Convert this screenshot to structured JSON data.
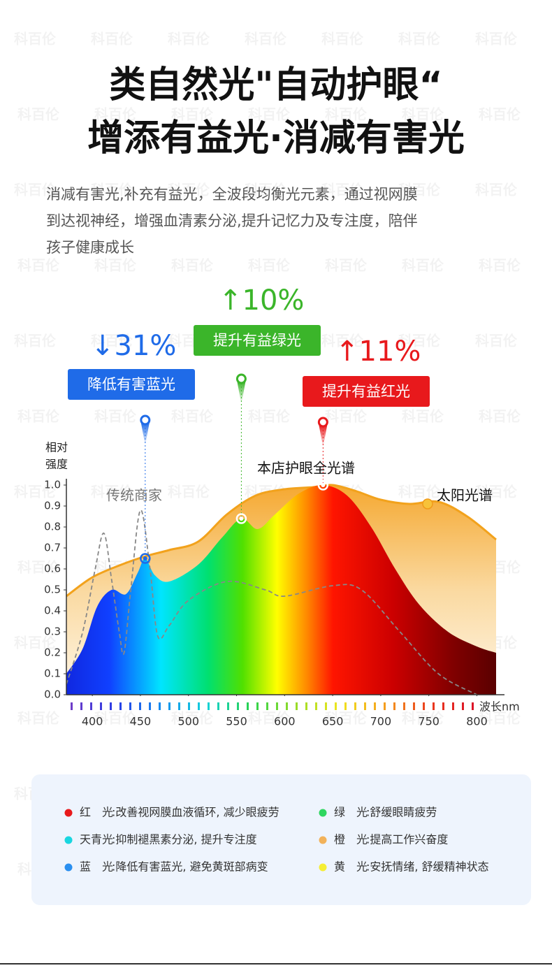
{
  "watermark": "科百伦",
  "header": {
    "title_lines": [
      "类自然光\"自动护眼“",
      "增添有益光·消减有害光"
    ],
    "description_lines": [
      "消减有害光,补充有益光，全波段均衡光元素，通过视网膜",
      "到达视神经，增强血清素分泌,提升记忆力及专注度，陪伴",
      "孩子健康成长"
    ]
  },
  "callouts": [
    {
      "change": "↓31%",
      "label": "降低有害蓝光",
      "color": "#1f6be8"
    },
    {
      "change": "↑10%",
      "label": "提升有益绿光",
      "color": "#3bb52a"
    },
    {
      "change": "↑11%",
      "label": "提升有益红光",
      "color": "#e8191c"
    }
  ],
  "chart_data": {
    "type": "line",
    "y_label_lines": [
      "相对",
      "强度"
    ],
    "x_label": "波长nm",
    "xlim": [
      373,
      820
    ],
    "ylim": [
      0,
      1.0
    ],
    "xticks": [
      400,
      450,
      500,
      550,
      600,
      650,
      700,
      750,
      800
    ],
    "yticks": [
      {
        "value": 0,
        "label": "0.0"
      },
      0.1,
      0.2,
      0.3,
      0.4,
      0.5,
      0.6,
      0.7,
      0.8,
      0.9,
      {
        "value": 1.0,
        "label": "1.0"
      }
    ],
    "series": [
      {
        "name": "太阳光谱",
        "color": "#f2a21c",
        "x": [
          373,
          400,
          430,
          455,
          480,
          510,
          540,
          570,
          600,
          630,
          650,
          675,
          700,
          730,
          760,
          790,
          820
        ],
        "values": [
          0.47,
          0.56,
          0.62,
          0.66,
          0.69,
          0.73,
          0.86,
          0.95,
          0.98,
          0.99,
          1.0,
          0.97,
          0.93,
          0.91,
          0.92,
          0.85,
          0.74
        ]
      },
      {
        "name": "本店护眼全光谱",
        "color": "#e8191c",
        "x": [
          373,
          390,
          405,
          420,
          435,
          447,
          455,
          465,
          480,
          510,
          535,
          555,
          572,
          590,
          615,
          640,
          665,
          690,
          715,
          740,
          770,
          800,
          820
        ],
        "values": [
          0.1,
          0.22,
          0.42,
          0.5,
          0.48,
          0.58,
          0.65,
          0.57,
          0.54,
          0.62,
          0.75,
          0.84,
          0.79,
          0.86,
          0.96,
          1.0,
          0.95,
          0.8,
          0.6,
          0.43,
          0.3,
          0.23,
          0.2
        ]
      },
      {
        "name": "传统商家",
        "color": "#888888",
        "x": [
          373,
          390,
          403,
          412,
          420,
          428,
          433,
          440,
          450,
          460,
          468,
          480,
          500,
          540,
          580,
          600,
          650,
          680,
          720,
          760,
          800
        ],
        "values": [
          0.05,
          0.3,
          0.6,
          0.77,
          0.55,
          0.3,
          0.2,
          0.5,
          0.88,
          0.6,
          0.28,
          0.33,
          0.45,
          0.54,
          0.5,
          0.47,
          0.52,
          0.5,
          0.3,
          0.1,
          0.0
        ]
      }
    ]
  },
  "legend": [
    {
      "name": "红　光",
      "text": ":改善视网膜血液循环, 减少眼疲劳",
      "color": "#e8191c"
    },
    {
      "name": "绿　光",
      "text": ":舒缓眼睛疲劳",
      "color": "#2fd660"
    },
    {
      "name": "天青光",
      "text": ":抑制褪黑素分泌, 提升专注度",
      "color": "#19d6e0"
    },
    {
      "name": "橙　光",
      "text": ":提高工作兴奋度",
      "color": "#f2b25a"
    },
    {
      "name": "蓝　光",
      "text": ":降低有害蓝光, 避免黄斑部病变",
      "color": "#2a8ff0"
    },
    {
      "name": "黄　光",
      "text": ":安抚情绪, 舒缓精神状态",
      "color": "#f5ee35"
    }
  ]
}
